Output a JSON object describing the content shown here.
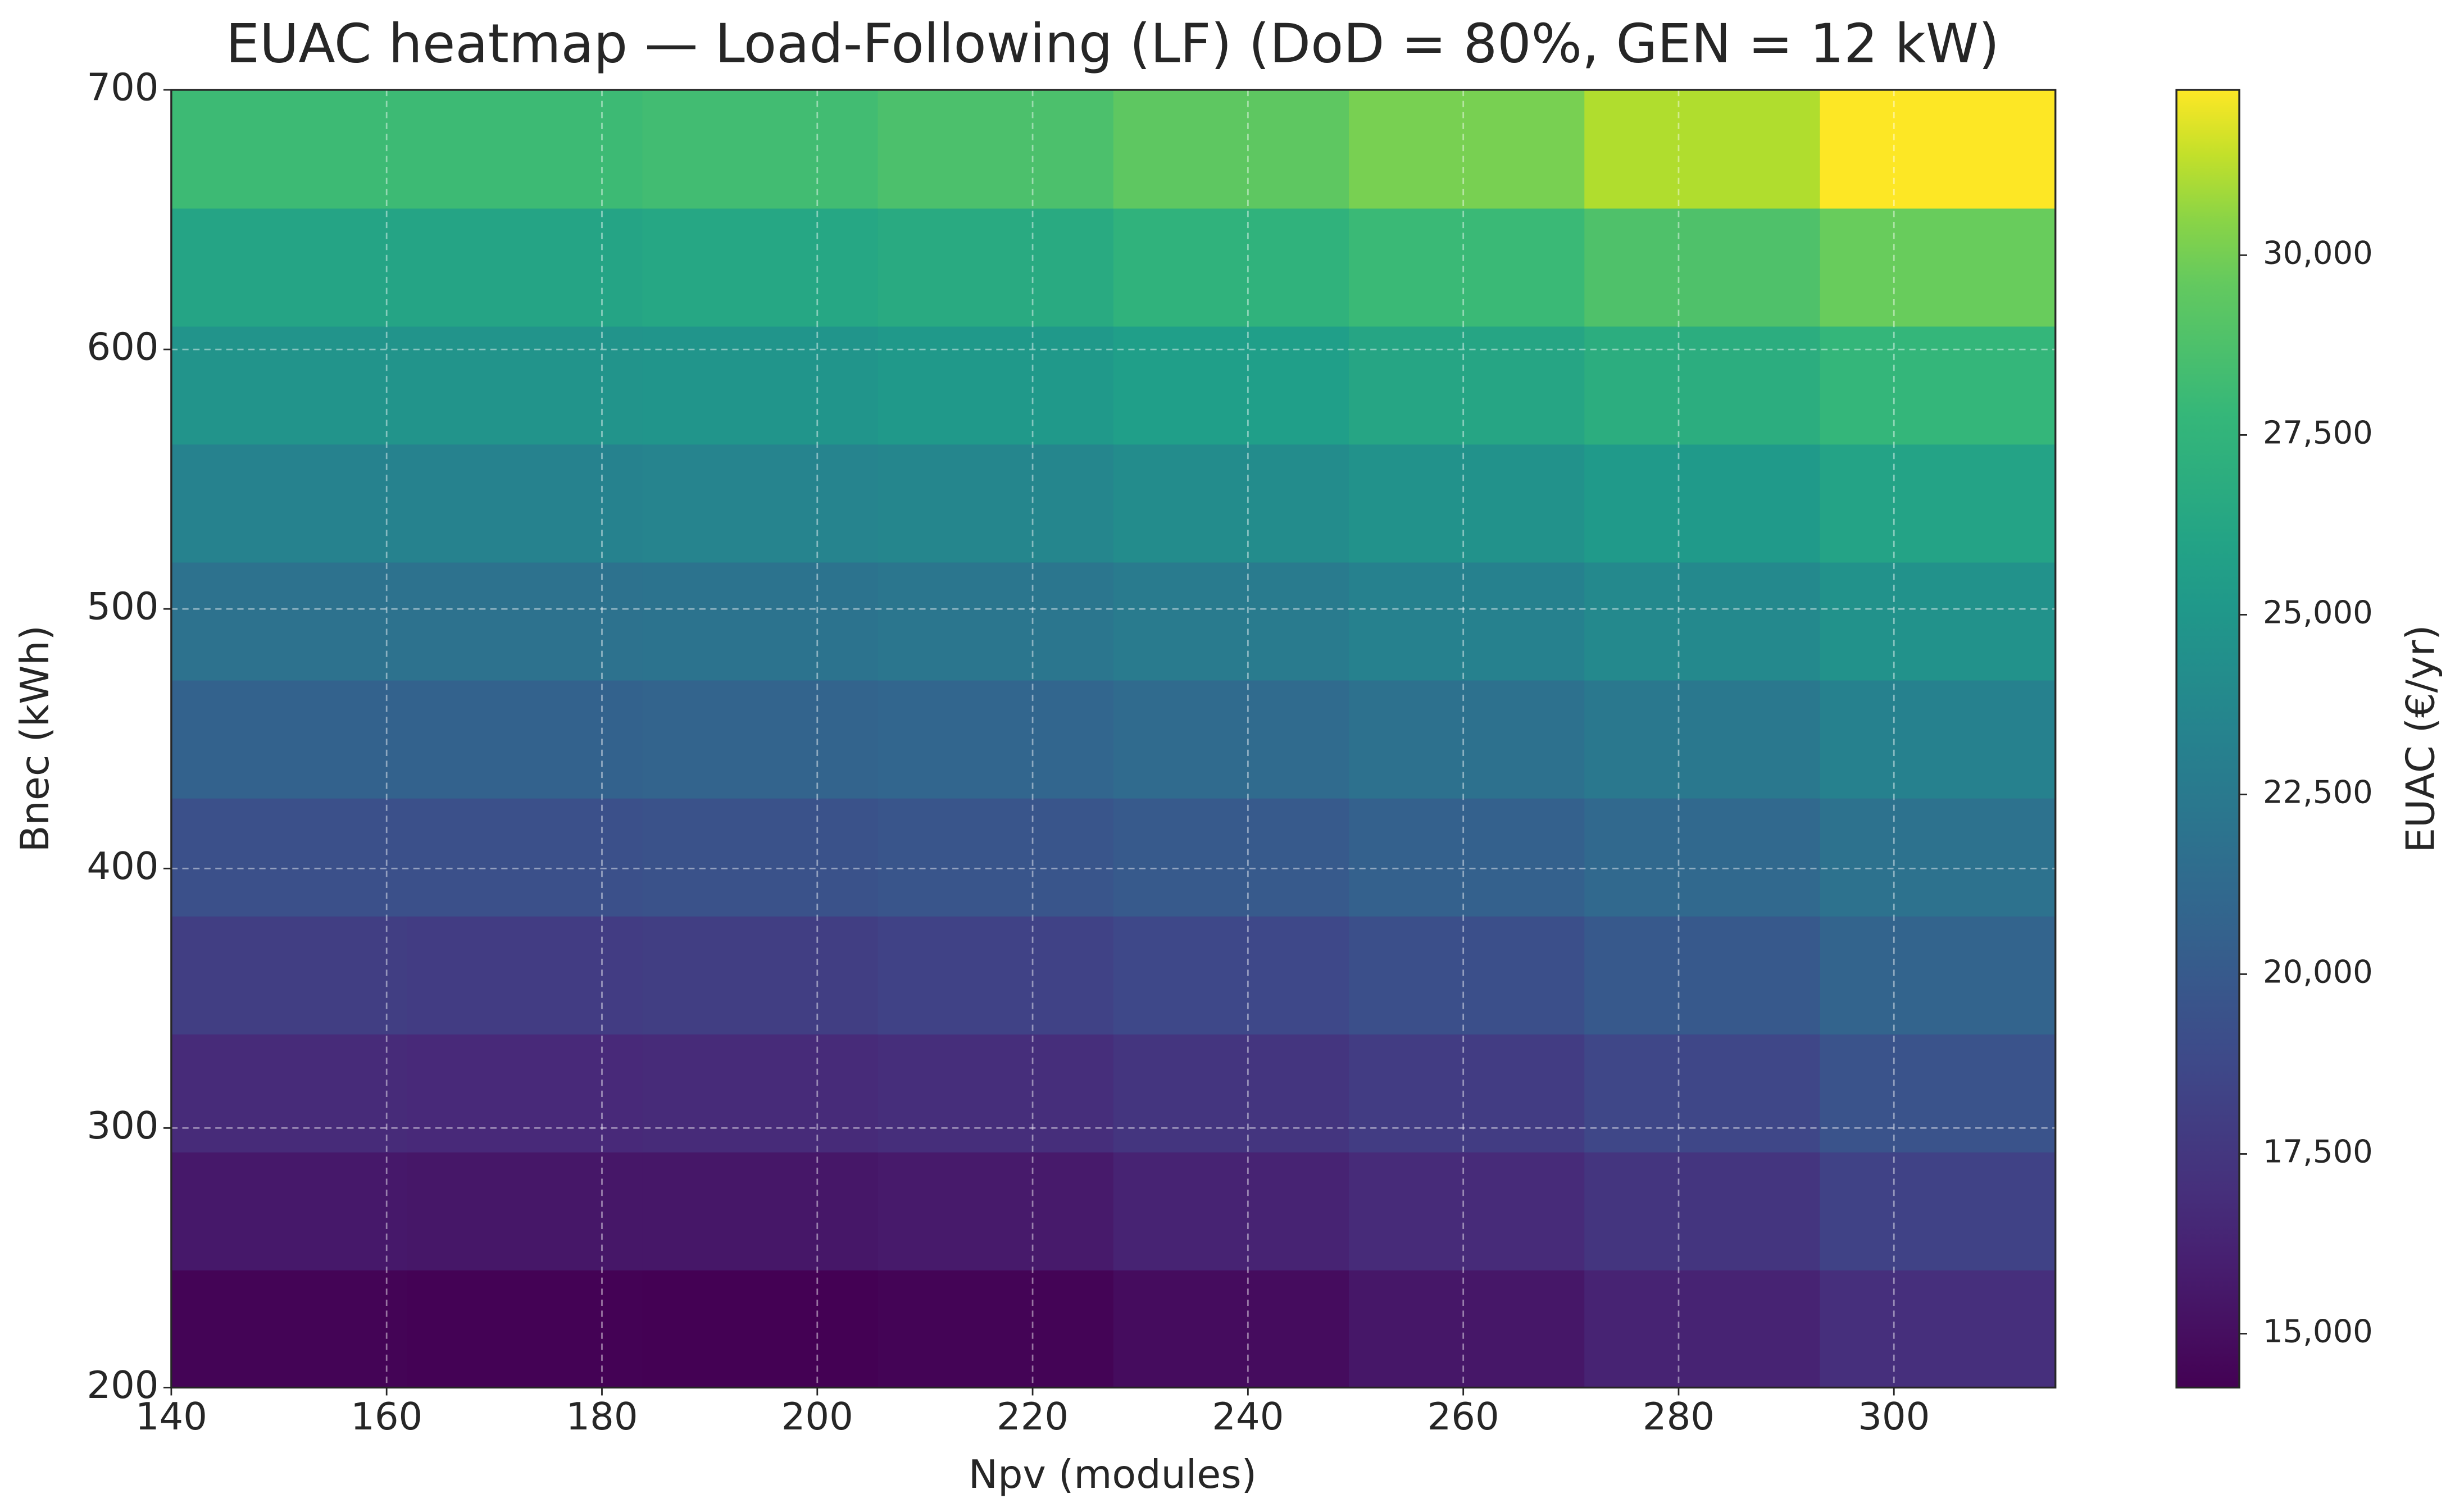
{
  "chart_data": {
    "type": "heatmap",
    "title": "EUAC heatmap — Load-Following (LF) (DoD = 80%, GEN = 12 kW)",
    "x_label": "Npv (modules)",
    "y_label": "Bnec (kWh)",
    "colorbar_label": "EUAC (€/yr)",
    "colormap": "viridis",
    "grid": true,
    "xbins": [
      140,
      161.875,
      183.75,
      205.625,
      227.5,
      249.375,
      271.25,
      293.125,
      315
    ],
    "ybins": [
      200,
      245.45,
      290.91,
      336.36,
      381.82,
      427.27,
      472.73,
      518.18,
      563.64,
      609.09,
      654.55,
      700
    ],
    "z": [
      [
        14400,
        14300,
        14250,
        14400,
        14900,
        15500,
        16200,
        17000
      ],
      [
        15600,
        15500,
        15500,
        15700,
        16200,
        16700,
        17400,
        18300
      ],
      [
        16700,
        16600,
        16700,
        16900,
        17400,
        17900,
        18600,
        19500
      ],
      [
        18000,
        17900,
        18000,
        18300,
        18700,
        19200,
        19900,
        20700
      ],
      [
        19300,
        19300,
        19400,
        19600,
        20000,
        20500,
        21100,
        21900
      ],
      [
        20600,
        20600,
        20700,
        20900,
        21300,
        21800,
        22400,
        23200
      ],
      [
        21900,
        21900,
        22000,
        22200,
        22700,
        23200,
        23800,
        24600
      ],
      [
        23300,
        23300,
        23400,
        23600,
        24100,
        24600,
        25200,
        26000
      ],
      [
        24700,
        24700,
        24800,
        25100,
        25600,
        26200,
        26900,
        27700
      ],
      [
        26100,
        26100,
        26300,
        26600,
        27300,
        28000,
        28800,
        29800
      ],
      [
        28100,
        28100,
        28300,
        28700,
        29400,
        30200,
        31100,
        32300
      ]
    ],
    "xlim": [
      140,
      315
    ],
    "ylim": [
      200,
      700
    ],
    "xticks": [
      140,
      160,
      180,
      200,
      220,
      240,
      260,
      280,
      300
    ],
    "yticks": [
      200,
      300,
      400,
      500,
      600,
      700
    ],
    "clim": [
      14250,
      32300
    ],
    "cticks": [
      {
        "value": 15000,
        "label": "15,000"
      },
      {
        "value": 17500,
        "label": "17,500"
      },
      {
        "value": 20000,
        "label": "20,000"
      },
      {
        "value": 22500,
        "label": "22,500"
      },
      {
        "value": 25000,
        "label": "25,000"
      },
      {
        "value": 27500,
        "label": "27,500"
      },
      {
        "value": 30000,
        "label": "30,000"
      }
    ]
  }
}
